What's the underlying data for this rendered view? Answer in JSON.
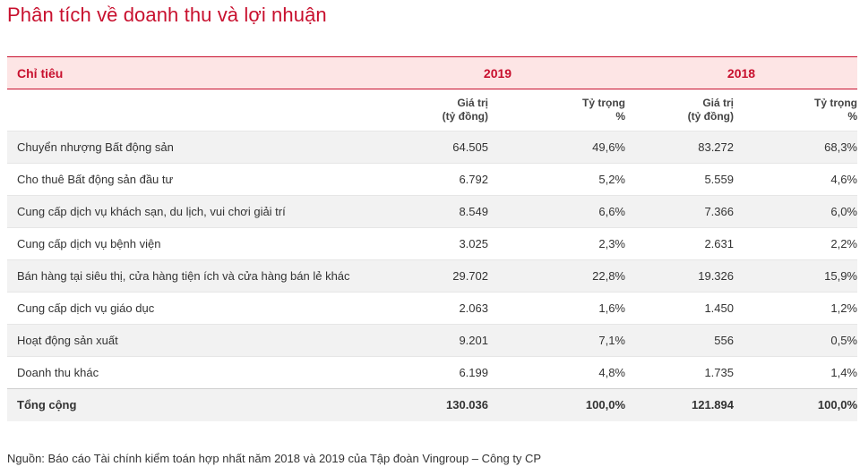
{
  "title": "Phân tích về doanh thu và lợi nhuận",
  "table": {
    "label_header": "Chỉ tiêu",
    "years": [
      "2019",
      "2018"
    ],
    "sub_headers": {
      "value_line1": "Giá trị",
      "value_line2": "(tỷ đồng)",
      "share_line1": "Tỷ trọng",
      "share_line2": "%"
    },
    "rows": [
      {
        "label": "Chuyển nhượng Bất động sản",
        "v2019": "64.505",
        "p2019": "49,6%",
        "v2018": "83.272",
        "p2018": "68,3%"
      },
      {
        "label": "Cho thuê Bất động sản đầu tư",
        "v2019": "6.792",
        "p2019": "5,2%",
        "v2018": "5.559",
        "p2018": "4,6%"
      },
      {
        "label": "Cung cấp dịch vụ khách sạn, du lịch, vui chơi giải trí",
        "v2019": "8.549",
        "p2019": "6,6%",
        "v2018": "7.366",
        "p2018": "6,0%"
      },
      {
        "label": "Cung cấp dịch vụ bệnh viện",
        "v2019": "3.025",
        "p2019": "2,3%",
        "v2018": "2.631",
        "p2018": "2,2%"
      },
      {
        "label": "Bán hàng tại siêu thị, cửa hàng tiện ích và cửa hàng bán lẻ khác",
        "v2019": "29.702",
        "p2019": "22,8%",
        "v2018": "19.326",
        "p2018": "15,9%"
      },
      {
        "label": "Cung cấp dịch vụ giáo dục",
        "v2019": "2.063",
        "p2019": "1,6%",
        "v2018": "1.450",
        "p2018": "1,2%"
      },
      {
        "label": "Hoạt động sản xuất",
        "v2019": "9.201",
        "p2019": "7,1%",
        "v2018": "556",
        "p2018": "0,5%"
      },
      {
        "label": "Doanh thu khác",
        "v2019": "6.199",
        "p2019": "4,8%",
        "v2018": "1.735",
        "p2018": "1,4%"
      }
    ],
    "total": {
      "label": "Tổng cộng",
      "v2019": "130.036",
      "p2019": "100,0%",
      "v2018": "121.894",
      "p2018": "100,0%"
    }
  },
  "source": "Nguồn: Báo cáo Tài chính kiểm toán hợp nhất năm 2018 và 2019 của Tập đoàn Vingroup – Công ty CP",
  "colors": {
    "accent": "#c8102e",
    "header_bg": "#fde5e5",
    "stripe_bg": "#f2f2f2"
  }
}
